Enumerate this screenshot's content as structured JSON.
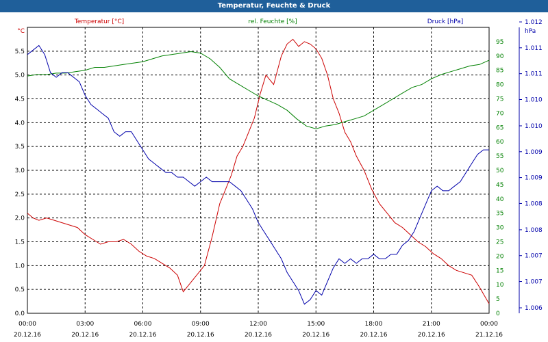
{
  "window": {
    "title": "Temperatur, Feuchte & Druck"
  },
  "colors": {
    "temperature": "#cc0000",
    "humidity": "#008000",
    "pressure": "#0000aa",
    "grid": "#000000",
    "titlebar": "#1f5f9a"
  },
  "chart_data": {
    "type": "line",
    "title": "Temperatur, Feuchte & Druck",
    "grid": true,
    "x_ticks": [
      {
        "time": "00:00",
        "date": "20.12.16"
      },
      {
        "time": "03:00",
        "date": "20.12.16"
      },
      {
        "time": "06:00",
        "date": "20.12.16"
      },
      {
        "time": "09:00",
        "date": "20.12.16"
      },
      {
        "time": "12:00",
        "date": "20.12.16"
      },
      {
        "time": "15:00",
        "date": "20.12.16"
      },
      {
        "time": "18:00",
        "date": "20.12.16"
      },
      {
        "time": "21:00",
        "date": "20.12.16"
      },
      {
        "time": "00:00",
        "date": "21.12.16"
      }
    ],
    "x_unit_hours": [
      0,
      24
    ],
    "axes": {
      "temperature": {
        "label": "Temperatur [°C]",
        "unit": "°C",
        "range": [
          0,
          6
        ],
        "ticks": [
          "0.0",
          "0.5",
          "1.0",
          "1.5",
          "2.0",
          "2.5",
          "3.0",
          "3.5",
          "4.0",
          "4.5",
          "5.0",
          "5.5"
        ],
        "tick_values": [
          0,
          0.5,
          1,
          1.5,
          2,
          2.5,
          3,
          3.5,
          4,
          4.5,
          5,
          5.5
        ]
      },
      "humidity": {
        "label": "rel. Feuchte [%]",
        "unit": "%",
        "range": [
          0,
          100
        ],
        "ticks": [
          "0",
          "5",
          "10",
          "15",
          "20",
          "25",
          "30",
          "35",
          "40",
          "45",
          "50",
          "55",
          "60",
          "65",
          "70",
          "75",
          "80",
          "85",
          "90",
          "95"
        ],
        "tick_values": [
          0,
          5,
          10,
          15,
          20,
          25,
          30,
          35,
          40,
          45,
          50,
          55,
          60,
          65,
          70,
          75,
          80,
          85,
          90,
          95
        ]
      },
      "pressure": {
        "label": "Druck [hPa]",
        "unit": "hPa",
        "range": [
          1.0059,
          1.0122
        ],
        "ticks": [
          "1.006",
          "1.007",
          "1.007",
          "1.008",
          "1.008",
          "1.009",
          "1.009",
          "1.010",
          "1.010",
          "1.011",
          "1.011",
          "1.012"
        ],
        "tick_values": [
          1.00602,
          1.0066,
          1.00717,
          1.00774,
          1.00832,
          1.00889,
          1.00946,
          1.01003,
          1.01061,
          1.01118,
          1.01175,
          1.01232
        ]
      }
    },
    "series": [
      {
        "name": "Temperatur [°C]",
        "axis": "temperature",
        "x": [
          0,
          0.3,
          0.6,
          1,
          1.4,
          1.8,
          2.2,
          2.6,
          3,
          3.4,
          3.8,
          4.2,
          4.6,
          5,
          5.4,
          5.8,
          6.2,
          6.6,
          7,
          7.4,
          7.8,
          8.1,
          8.4,
          8.8,
          9.2,
          9.6,
          10,
          10.3,
          10.6,
          10.9,
          11.2,
          11.5,
          11.8,
          12.1,
          12.4,
          12.8,
          13.2,
          13.5,
          13.8,
          14.1,
          14.4,
          14.7,
          15,
          15.3,
          15.6,
          15.9,
          16.2,
          16.5,
          16.8,
          17.1,
          17.5,
          17.9,
          18.3,
          18.7,
          19.1,
          19.5,
          19.9,
          20.3,
          20.7,
          21.1,
          21.5,
          21.9,
          22.3,
          22.7,
          23.1,
          23.5,
          24
        ],
        "values": [
          2.1,
          2.0,
          1.95,
          2.0,
          1.95,
          1.9,
          1.85,
          1.8,
          1.65,
          1.55,
          1.45,
          1.5,
          1.5,
          1.55,
          1.45,
          1.3,
          1.2,
          1.15,
          1.05,
          0.95,
          0.8,
          0.45,
          0.6,
          0.8,
          1.0,
          1.6,
          2.3,
          2.6,
          2.9,
          3.3,
          3.5,
          3.8,
          4.1,
          4.6,
          5.0,
          4.8,
          5.4,
          5.65,
          5.75,
          5.6,
          5.7,
          5.65,
          5.55,
          5.35,
          5.0,
          4.5,
          4.2,
          3.8,
          3.6,
          3.3,
          3.0,
          2.6,
          2.3,
          2.1,
          1.9,
          1.8,
          1.65,
          1.5,
          1.4,
          1.25,
          1.15,
          1.0,
          0.9,
          0.85,
          0.8,
          0.55,
          0.2
        ]
      },
      {
        "name": "rel. Feuchte [%]",
        "axis": "humidity",
        "x": [
          0,
          0.5,
          1,
          1.5,
          2,
          2.5,
          3,
          3.5,
          4,
          4.5,
          5,
          5.5,
          6,
          6.5,
          7,
          7.5,
          8,
          8.5,
          9,
          9.5,
          10,
          10.5,
          11,
          11.5,
          12,
          12.5,
          13,
          13.5,
          14,
          14.5,
          15,
          15.5,
          16,
          16.5,
          17,
          17.5,
          18,
          18.5,
          19,
          19.5,
          20,
          20.5,
          21,
          21.5,
          22,
          22.5,
          23,
          23.5,
          24
        ],
        "values": [
          83,
          83.5,
          83.5,
          84,
          84,
          84.5,
          85,
          86,
          86,
          86.5,
          87,
          87.5,
          88,
          89,
          90,
          90.5,
          91,
          91.5,
          91,
          89,
          86,
          82,
          80,
          78,
          76,
          74.5,
          73,
          71,
          68,
          65.5,
          64.5,
          65.5,
          66,
          67,
          68,
          69,
          71,
          73,
          75,
          77,
          79,
          80,
          82,
          83.5,
          84.5,
          85.5,
          86.5,
          87,
          88.5
        ]
      },
      {
        "name": "Druck [hPa]",
        "axis": "pressure",
        "x": [
          0,
          0.3,
          0.6,
          0.9,
          1.2,
          1.5,
          1.8,
          2.1,
          2.4,
          2.7,
          3,
          3.3,
          3.6,
          3.9,
          4.2,
          4.5,
          4.8,
          5.1,
          5.4,
          5.7,
          6,
          6.3,
          6.6,
          6.9,
          7.2,
          7.5,
          7.8,
          8.1,
          8.4,
          8.7,
          9,
          9.3,
          9.6,
          9.9,
          10.2,
          10.5,
          10.8,
          11.1,
          11.4,
          11.7,
          12,
          12.3,
          12.6,
          12.9,
          13.2,
          13.5,
          13.8,
          14.1,
          14.4,
          14.7,
          15,
          15.3,
          15.6,
          15.9,
          16.2,
          16.5,
          16.8,
          17.1,
          17.4,
          17.7,
          18,
          18.3,
          18.6,
          18.9,
          19.2,
          19.5,
          19.8,
          20.1,
          20.4,
          20.7,
          21,
          21.3,
          21.6,
          21.9,
          22.2,
          22.5,
          22.8,
          23.1,
          23.4,
          23.7,
          24
        ],
        "values": [
          1.0116,
          1.0117,
          1.0118,
          1.0116,
          1.0112,
          1.0111,
          1.0112,
          1.0112,
          1.0111,
          1.011,
          1.0107,
          1.0105,
          1.0104,
          1.0103,
          1.0102,
          1.0099,
          1.0098,
          1.0099,
          1.0099,
          1.0097,
          1.0095,
          1.0093,
          1.0092,
          1.0091,
          1.009,
          1.009,
          1.0089,
          1.0089,
          1.0088,
          1.0087,
          1.0088,
          1.0089,
          1.0088,
          1.0088,
          1.0088,
          1.0088,
          1.0087,
          1.0086,
          1.0084,
          1.0082,
          1.0079,
          1.0077,
          1.0075,
          1.0073,
          1.0071,
          1.0068,
          1.0066,
          1.0064,
          1.0061,
          1.0062,
          1.0064,
          1.0063,
          1.0066,
          1.0069,
          1.0071,
          1.007,
          1.0071,
          1.007,
          1.0071,
          1.0071,
          1.0072,
          1.0071,
          1.0071,
          1.0072,
          1.0072,
          1.0074,
          1.0075,
          1.0077,
          1.008,
          1.0083,
          1.0086,
          1.0087,
          1.0086,
          1.0086,
          1.0087,
          1.0088,
          1.009,
          1.0092,
          1.0094,
          1.0095,
          1.0095
        ]
      }
    ]
  }
}
